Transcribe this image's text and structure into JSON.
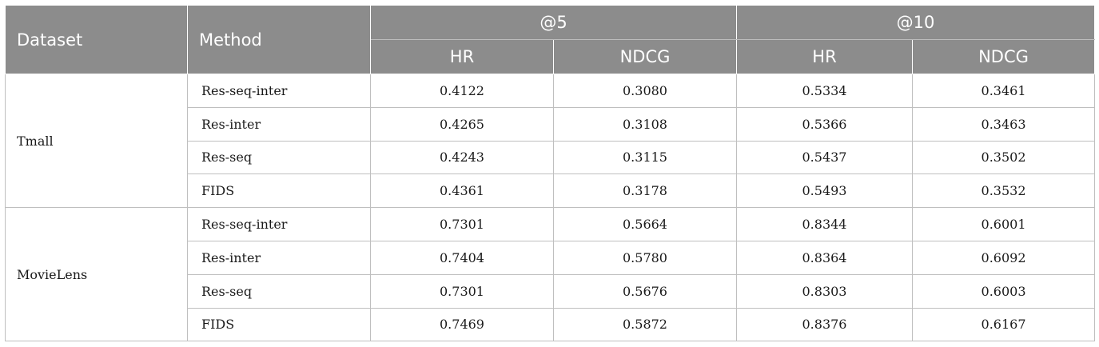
{
  "header": {
    "dataset_label": "Dataset",
    "method_label": "Method",
    "groups": [
      "@5",
      "@10"
    ],
    "metrics": [
      "HR",
      "NDCG",
      "HR",
      "NDCG"
    ]
  },
  "groups": [
    {
      "dataset": "Tmall",
      "rows": [
        {
          "method": "Res-seq-inter",
          "hr5": "0.4122",
          "ndcg5": "0.3080",
          "hr10": "0.5334",
          "ndcg10": "0.3461"
        },
        {
          "method": "Res-inter",
          "hr5": "0.4265",
          "ndcg5": "0.3108",
          "hr10": "0.5366",
          "ndcg10": "0.3463"
        },
        {
          "method": "Res-seq",
          "hr5": "0.4243",
          "ndcg5": "0.3115",
          "hr10": "0.5437",
          "ndcg10": "0.3502"
        },
        {
          "method": "FIDS",
          "hr5": "0.4361",
          "ndcg5": "0.3178",
          "hr10": "0.5493",
          "ndcg10": "0.3532"
        }
      ]
    },
    {
      "dataset": "MovieLens",
      "rows": [
        {
          "method": "Res-seq-inter",
          "hr5": "0.7301",
          "ndcg5": "0.5664",
          "hr10": "0.8344",
          "ndcg10": "0.6001"
        },
        {
          "method": "Res-inter",
          "hr5": "0.7404",
          "ndcg5": "0.5780",
          "hr10": "0.8364",
          "ndcg10": "0.6092"
        },
        {
          "method": "Res-seq",
          "hr5": "0.7301",
          "ndcg5": "0.5676",
          "hr10": "0.8303",
          "ndcg10": "0.6003"
        },
        {
          "method": "FIDS",
          "hr5": "0.7469",
          "ndcg5": "0.5872",
          "hr10": "0.8376",
          "ndcg10": "0.6167"
        }
      ]
    }
  ]
}
